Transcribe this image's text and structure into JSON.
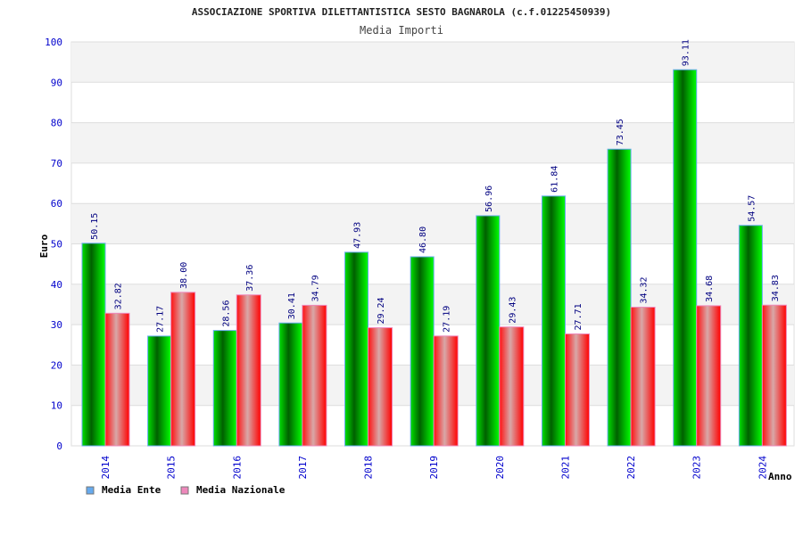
{
  "chart_data": {
    "type": "bar",
    "title": "ASSOCIAZIONE SPORTIVA DILETTANTISTICA SESTO BAGNAROLA (c.f.01225450939)",
    "subtitle": "Media Importi",
    "xlabel": "Anno",
    "ylabel": "Euro",
    "ylim": [
      0,
      100
    ],
    "yticks": [
      "0",
      "10",
      "20",
      "30",
      "40",
      "50",
      "60",
      "70",
      "80",
      "90",
      "100"
    ],
    "grid": true,
    "legend_position": "bottom-left",
    "categories": [
      "2014",
      "2015",
      "2016",
      "2017",
      "2018",
      "2019",
      "2020",
      "2021",
      "2022",
      "2023",
      "2024"
    ],
    "series": [
      {
        "name": "Media Ente",
        "color": "#66aaee",
        "values": [
          50.15,
          27.17,
          28.56,
          30.41,
          47.93,
          46.8,
          56.96,
          61.84,
          73.45,
          93.11,
          54.57
        ],
        "labels": [
          "50.15",
          "27.17",
          "28.56",
          "30.41",
          "47.93",
          "46.80",
          "56.96",
          "61.84",
          "73.45",
          "93.11",
          "54.57"
        ]
      },
      {
        "name": "Media Nazionale",
        "color": "#ee88bb",
        "values": [
          32.82,
          38.0,
          37.36,
          34.79,
          29.24,
          27.19,
          29.43,
          27.71,
          34.32,
          34.68,
          34.83
        ],
        "labels": [
          "32.82",
          "38.00",
          "37.36",
          "34.79",
          "29.24",
          "27.19",
          "29.43",
          "27.71",
          "34.32",
          "34.68",
          "34.83"
        ]
      }
    ]
  }
}
